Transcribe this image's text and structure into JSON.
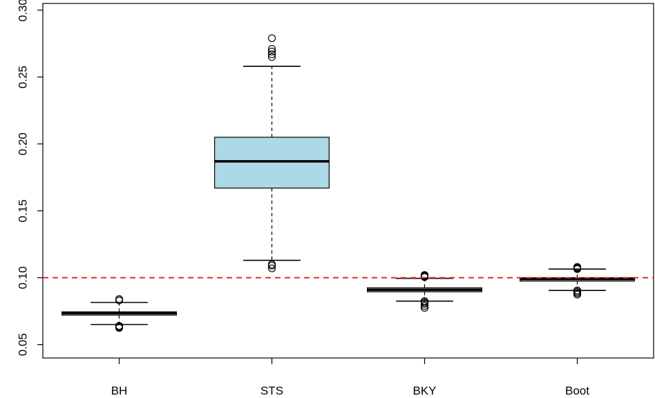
{
  "chart_data": {
    "type": "boxplot",
    "title": "",
    "xlabel": "",
    "ylabel": "",
    "ylim": [
      0.04,
      0.305
    ],
    "yticks": [
      "0.05",
      "0.10",
      "0.15",
      "0.20",
      "0.25",
      "0.30"
    ],
    "grid": false,
    "categories": [
      "BH",
      "STS",
      "BKY",
      "Boot"
    ],
    "boxes": [
      {
        "category": "BH",
        "whisker_low": 0.065,
        "q1": 0.072,
        "median": 0.0735,
        "q3": 0.0745,
        "whisker_high": 0.0815,
        "outliers": [
          0.0625,
          0.063,
          0.0635,
          0.064,
          0.083,
          0.084
        ]
      },
      {
        "category": "STS",
        "whisker_low": 0.113,
        "q1": 0.167,
        "median": 0.187,
        "q3": 0.205,
        "whisker_high": 0.258,
        "outliers": [
          0.107,
          0.109,
          0.11,
          0.265,
          0.267,
          0.269,
          0.271,
          0.279
        ]
      },
      {
        "category": "BKY",
        "whisker_low": 0.0825,
        "q1": 0.0895,
        "median": 0.091,
        "q3": 0.0925,
        "whisker_high": 0.0995,
        "outliers": [
          0.0775,
          0.079,
          0.0805,
          0.0815,
          0.0825,
          0.1005,
          0.101,
          0.1015,
          0.102
        ]
      },
      {
        "category": "Boot",
        "whisker_low": 0.0905,
        "q1": 0.0975,
        "median": 0.099,
        "q3": 0.1,
        "whisker_high": 0.1065,
        "outliers": [
          0.0875,
          0.0885,
          0.0895,
          0.0905,
          0.1065,
          0.107,
          0.1075,
          0.108
        ]
      }
    ],
    "reference_line": {
      "y": 0.1,
      "color": "#e3281e",
      "style": "dashed"
    },
    "box_fill": "#add8e6"
  }
}
